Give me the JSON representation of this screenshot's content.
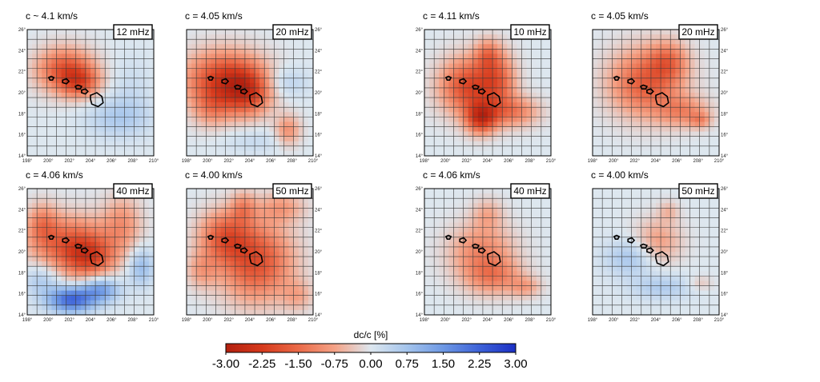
{
  "panels": [
    {
      "velocity": "c ~ 4.1 km/s",
      "frequency": "12 mHz",
      "pattern": "a"
    },
    {
      "velocity": "c = 4.05 km/s",
      "frequency": "20 mHz",
      "pattern": "b"
    },
    {
      "velocity": "c = 4.06 km/s",
      "frequency": "40 mHz",
      "pattern": "c"
    },
    {
      "velocity": "c = 4.00 km/s",
      "frequency": "50 mHz",
      "pattern": "d"
    },
    {
      "velocity": "c = 4.11 km/s",
      "frequency": "10 mHz",
      "pattern": "e"
    },
    {
      "velocity": "c = 4.05 km/s",
      "frequency": "20 mHz",
      "pattern": "f"
    },
    {
      "velocity": "c = 4.06 km/s",
      "frequency": "40 mHz",
      "pattern": "g"
    },
    {
      "velocity": "c = 4.00 km/s",
      "frequency": "50 mHz",
      "pattern": "h"
    }
  ],
  "axes": {
    "lon_ticks": [
      "198°",
      "200°",
      "202°",
      "204°",
      "206°",
      "208°",
      "210°"
    ],
    "lat_ticks": [
      "14°",
      "16°",
      "18°",
      "20°",
      "22°",
      "24°",
      "26°"
    ]
  },
  "colorbar": {
    "title": "dc/c [%]",
    "labels": [
      "-3.00",
      "-2.25",
      "-1.50",
      "-0.75",
      "0.00",
      "0.75",
      "1.50",
      "2.25",
      "3.00"
    ],
    "colors": [
      "#b2200f",
      "#d63a1c",
      "#ea6a48",
      "#f4a286",
      "#dde7ef",
      "#a4c4ec",
      "#6d98e4",
      "#3d62d8",
      "#1b2fc4"
    ]
  }
}
